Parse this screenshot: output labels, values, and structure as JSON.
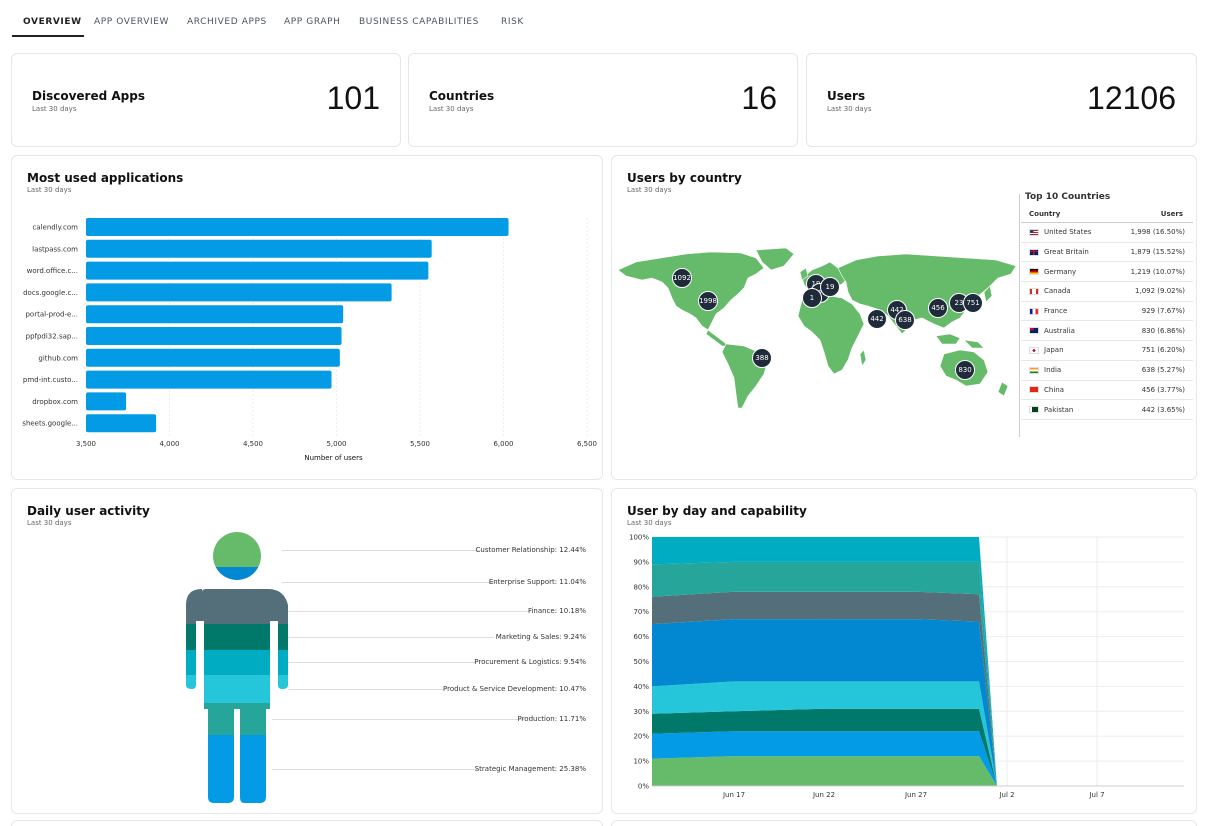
{
  "tabs": [
    "OVERVIEW",
    "APP OVERVIEW",
    "ARCHIVED APPS",
    "APP GRAPH",
    "BUSINESS CAPABILITIES",
    "RISK"
  ],
  "kpis": [
    {
      "title": "Discovered Apps",
      "sub": "Last 30 days",
      "value": "101"
    },
    {
      "title": "Countries",
      "sub": "Last 30 days",
      "value": "16"
    },
    {
      "title": "Users",
      "sub": "Last 30 days",
      "value": "12106"
    }
  ],
  "most_used": {
    "title": "Most used applications",
    "sub": "Last 30 days"
  },
  "users_by_country": {
    "title": "Users by country",
    "sub": "Last 30 days",
    "map_markers": [
      "1092",
      "1998",
      "19",
      "929",
      "19",
      "1",
      "442",
      "442",
      "638",
      "456",
      "23",
      "751",
      "388",
      "830"
    ],
    "table_title": "Top 10 Countries",
    "col_country": "Country",
    "col_users": "Users",
    "rows": [
      {
        "country": "United States",
        "users": "1,998 (16.50%)",
        "flag": "us"
      },
      {
        "country": "Great Britain",
        "users": "1,879 (15.52%)",
        "flag": "gb"
      },
      {
        "country": "Germany",
        "users": "1,219 (10.07%)",
        "flag": "de"
      },
      {
        "country": "Canada",
        "users": "1,092 (9.02%)",
        "flag": "ca"
      },
      {
        "country": "France",
        "users": "929 (7.67%)",
        "flag": "fr"
      },
      {
        "country": "Australia",
        "users": "830 (6.86%)",
        "flag": "au"
      },
      {
        "country": "Japan",
        "users": "751 (6.20%)",
        "flag": "jp"
      },
      {
        "country": "India",
        "users": "638 (5.27%)",
        "flag": "in"
      },
      {
        "country": "China",
        "users": "456 (3.77%)",
        "flag": "cn"
      },
      {
        "country": "Pakistan",
        "users": "442 (3.65%)",
        "flag": "pk"
      }
    ]
  },
  "daily": {
    "title": "Daily user activity",
    "sub": "Last 30 days",
    "segments": [
      {
        "label": "Customer Relationship: 12.44%",
        "color": "#66bb6a"
      },
      {
        "label": "Enterprise Support: 11.04%",
        "color": "#0288d1"
      },
      {
        "label": "Finance: 10.18%",
        "color": "#546e7a"
      },
      {
        "label": "Marketing & Sales: 9.24%",
        "color": "#00796b"
      },
      {
        "label": "Procurement & Logistics: 9.54%",
        "color": "#00acc1"
      },
      {
        "label": "Product & Service Development: 10.47%",
        "color": "#26c6da"
      },
      {
        "label": "Production: 11.71%",
        "color": "#26a69a"
      },
      {
        "label": "Strategic Management: 25.38%",
        "color": "#039be5"
      }
    ]
  },
  "capability": {
    "title": "User by day and capability",
    "sub": "Last 30 days"
  },
  "colors": {
    "bar": "#039be5",
    "map_land": "#66bb6a",
    "marker": "#1f2a3a"
  },
  "chart_data": [
    {
      "type": "bar",
      "orientation": "horizontal",
      "categories": [
        "calendly.com",
        "lastpass.com",
        "word.office.c...",
        "docs.google.c...",
        "portal-prod-e...",
        "ppfpdi32.sap...",
        "github.com",
        "pmd-int.custo...",
        "dropbox.com",
        "sheets.google..."
      ],
      "values": [
        6030,
        5570,
        5550,
        5330,
        5040,
        5030,
        5020,
        4970,
        3740,
        3920
      ],
      "xlabel": "Number of users",
      "ylabel": "",
      "xlim": [
        3500,
        6500
      ],
      "xticks": [
        "3,500",
        "4,000",
        "4,500",
        "5,000",
        "5,500",
        "6,000",
        "6,500"
      ],
      "grid": true
    },
    {
      "type": "area",
      "stacked": true,
      "percent": true,
      "x": [
        "Jun 12",
        "Jun 17",
        "Jun 22",
        "Jun 27",
        "Jul 1",
        "Jul 2",
        "Jul 7",
        "Jul 10"
      ],
      "xticks": [
        "Jun 17",
        "Jun 22",
        "Jun 27",
        "Jul 2",
        "Jul 7"
      ],
      "yticks": [
        "0%",
        "10%",
        "20%",
        "30%",
        "40%",
        "50%",
        "60%",
        "70%",
        "80%",
        "90%",
        "100%"
      ],
      "ylim": [
        0,
        100
      ],
      "series": [
        {
          "color": "#66bb6a",
          "values": [
            11,
            12,
            12,
            12,
            12,
            0,
            0,
            0
          ]
        },
        {
          "color": "#039be5",
          "values": [
            10,
            10,
            10,
            10,
            10,
            0,
            0,
            0
          ]
        },
        {
          "color": "#00796b",
          "values": [
            8,
            8,
            9,
            9,
            9,
            0,
            0,
            0
          ]
        },
        {
          "color": "#26c6da",
          "values": [
            11,
            12,
            11,
            11,
            11,
            0,
            0,
            0
          ]
        },
        {
          "color": "#0288d1",
          "values": [
            25,
            25,
            25,
            25,
            24,
            0,
            0,
            0
          ]
        },
        {
          "color": "#546e7a",
          "values": [
            11,
            11,
            11,
            11,
            11,
            0,
            0,
            0
          ]
        },
        {
          "color": "#26a69a",
          "values": [
            13,
            12,
            12,
            12,
            13,
            0,
            0,
            0
          ]
        },
        {
          "color": "#00acc1",
          "values": [
            11,
            10,
            10,
            10,
            10,
            0,
            0,
            0
          ]
        }
      ]
    }
  ]
}
